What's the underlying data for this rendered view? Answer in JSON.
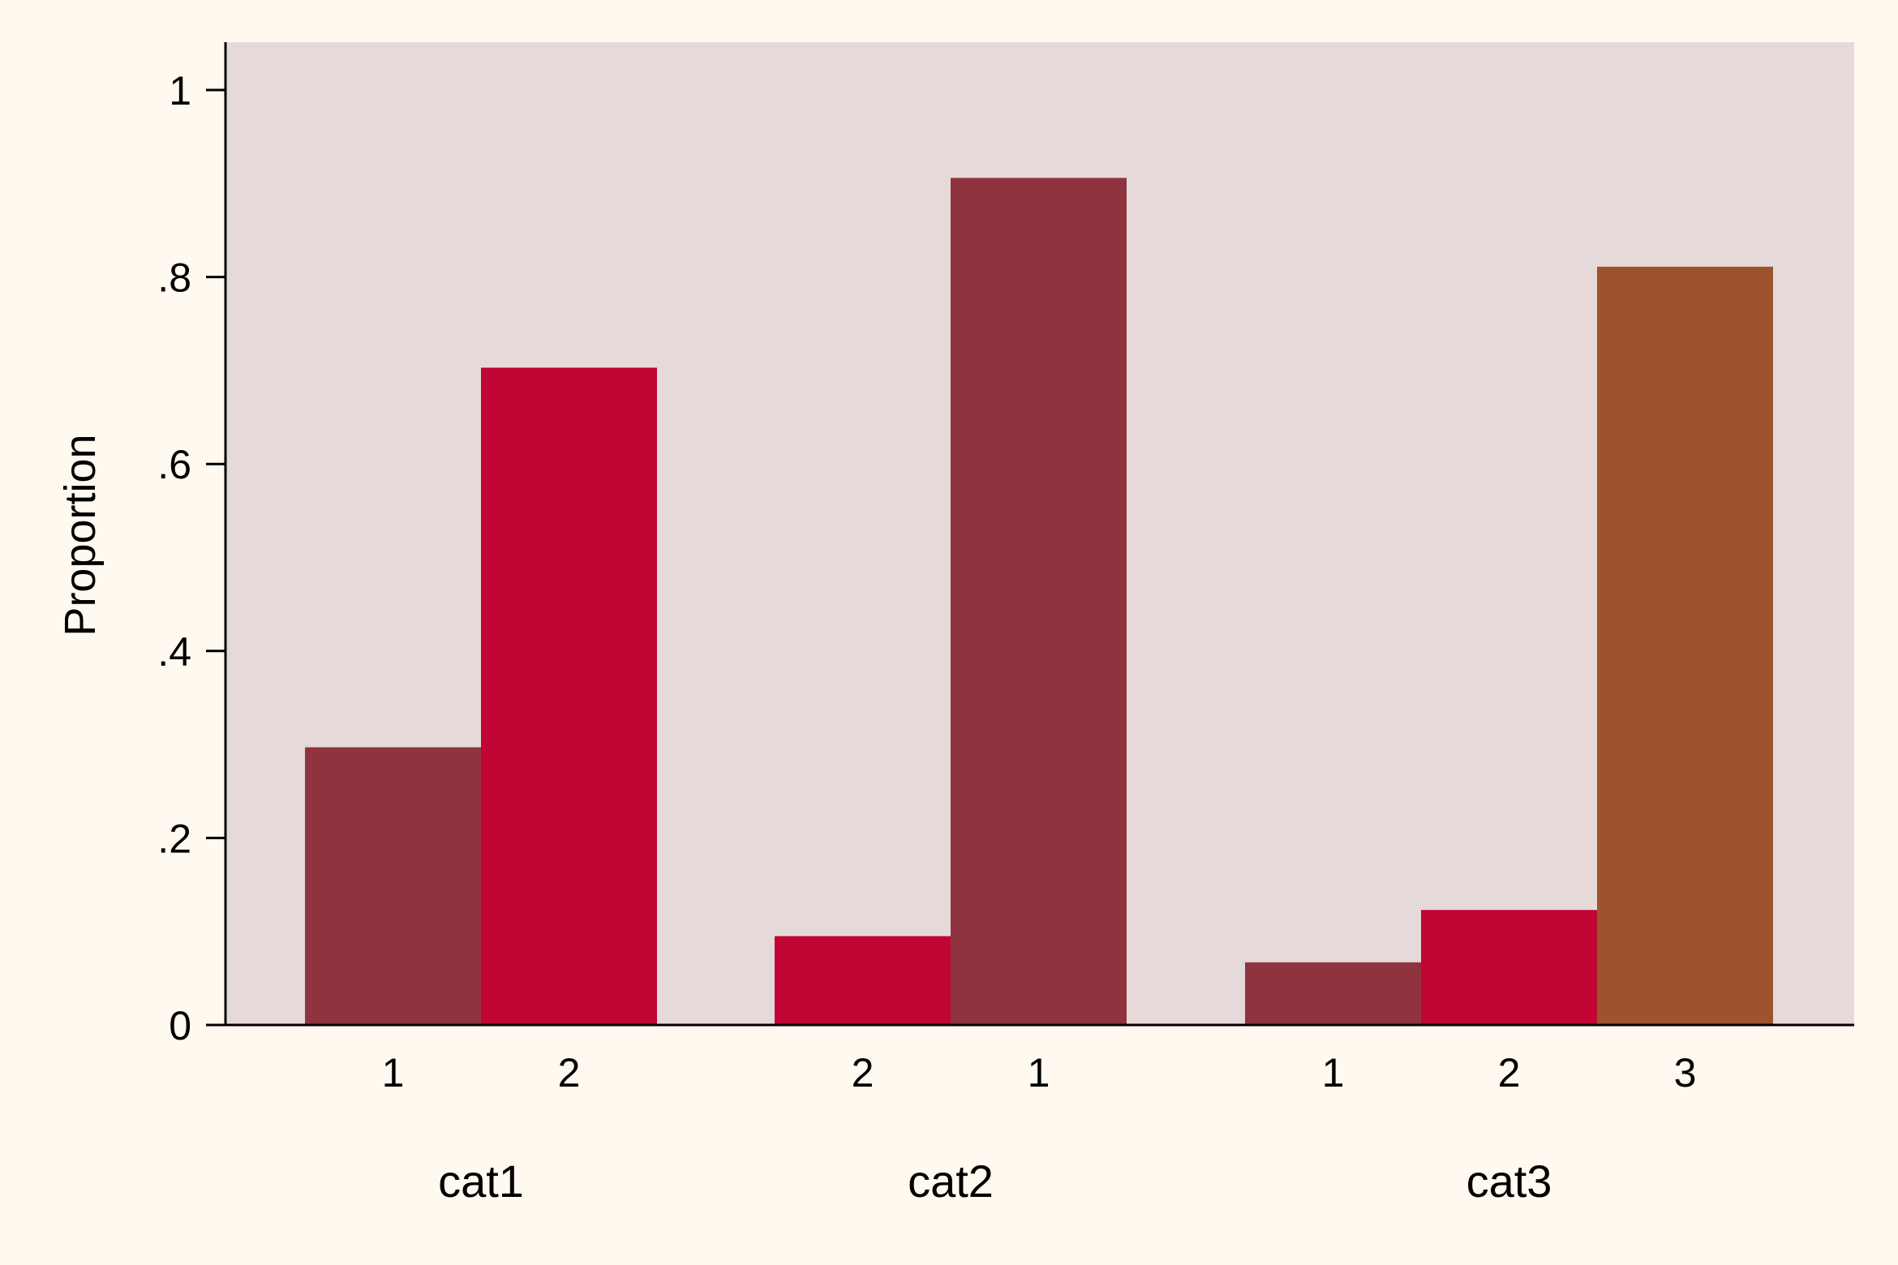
{
  "chart_data": {
    "type": "bar",
    "ylabel": "Proportion",
    "ylim": [
      0,
      1
    ],
    "yticks": [
      {
        "value": 0,
        "label": "0"
      },
      {
        "value": 0.2,
        "label": ".2"
      },
      {
        "value": 0.4,
        "label": ".4"
      },
      {
        "value": 0.6,
        "label": ".6"
      },
      {
        "value": 0.8,
        "label": ".8"
      },
      {
        "value": 1,
        "label": "1"
      }
    ],
    "grid": false,
    "legend": "none",
    "groups": [
      {
        "label": "cat1",
        "bars": [
          {
            "label": "1",
            "value": 0.297,
            "color": "#8f343e"
          },
          {
            "label": "2",
            "value": 0.703,
            "color": "#c10534"
          }
        ]
      },
      {
        "label": "cat2",
        "bars": [
          {
            "label": "2",
            "value": 0.095,
            "color": "#c10534"
          },
          {
            "label": "1",
            "value": 0.906,
            "color": "#8f343e"
          }
        ]
      },
      {
        "label": "cat3",
        "bars": [
          {
            "label": "1",
            "value": 0.067,
            "color": "#8f343e"
          },
          {
            "label": "2",
            "value": 0.123,
            "color": "#c10534"
          },
          {
            "label": "3",
            "value": 0.811,
            "color": "#9e522e"
          }
        ]
      }
    ],
    "colors": {
      "page_background": "#fff9ef",
      "plot_background": "#e5dad9",
      "axis": "#000000"
    }
  }
}
